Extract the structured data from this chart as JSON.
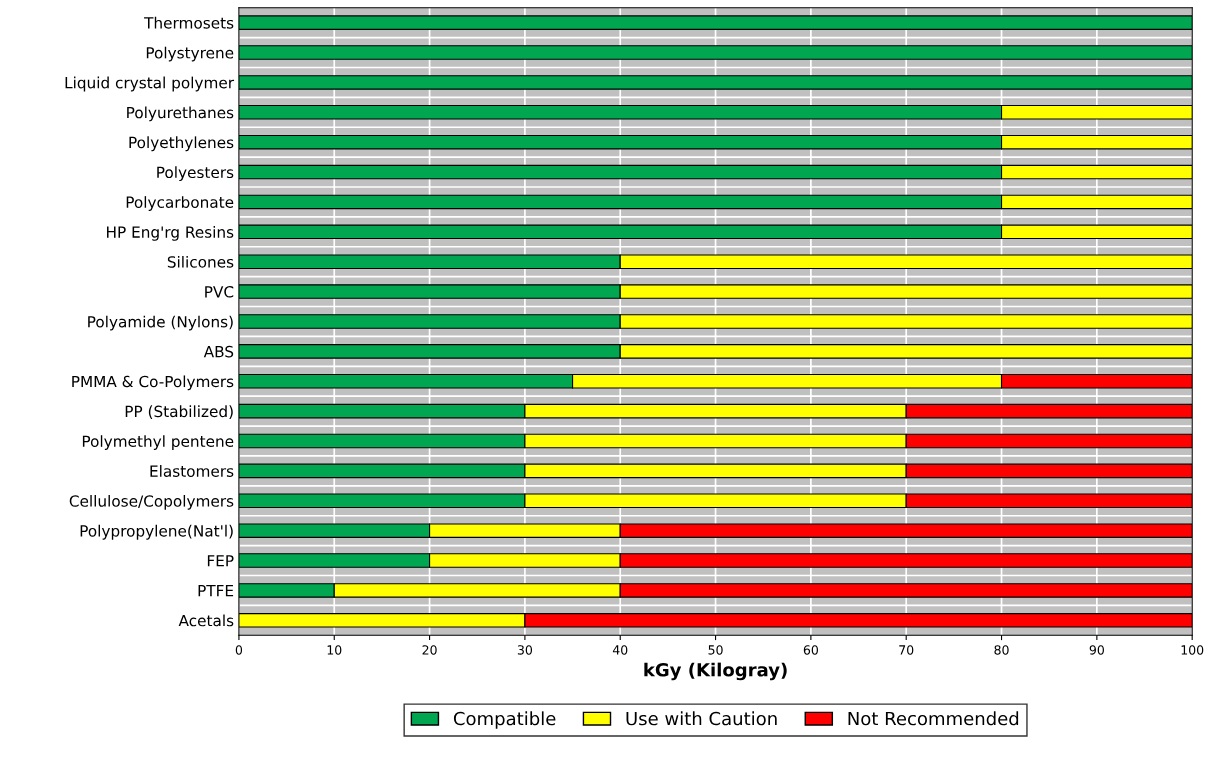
{
  "chart_data": {
    "type": "bar",
    "orientation": "horizontal",
    "stacked": true,
    "categories": [
      "Thermosets",
      "Polystyrene",
      "Liquid crystal polymer",
      "Polyurethanes",
      "Polyethylenes",
      "Polyesters",
      "Polycarbonate",
      "HP Eng'rg Resins",
      "Silicones",
      "PVC",
      "Polyamide (Nylons)",
      "ABS",
      "PMMA & Co-Polymers",
      "PP (Stabilized)",
      "Polymethyl pentene",
      "Elastomers",
      "Cellulose/Copolymers",
      "Polypropylene(Nat'l)",
      "FEP",
      "PTFE",
      "Acetals"
    ],
    "series": [
      {
        "name": "Compatible",
        "color": "#00a650",
        "values": [
          100,
          100,
          100,
          80,
          80,
          80,
          80,
          80,
          40,
          40,
          40,
          40,
          35,
          30,
          30,
          30,
          30,
          20,
          20,
          10,
          null
        ]
      },
      {
        "name": "Use with Caution",
        "color": "#ffff00",
        "values": [
          null,
          null,
          null,
          20,
          20,
          20,
          20,
          20,
          60,
          60,
          60,
          60,
          45,
          40,
          40,
          40,
          40,
          20,
          20,
          30,
          30
        ]
      },
      {
        "name": "Not Recommended",
        "color": "#ff0000",
        "values": [
          null,
          null,
          null,
          null,
          null,
          null,
          null,
          null,
          null,
          null,
          null,
          null,
          20,
          30,
          30,
          30,
          30,
          60,
          60,
          60,
          70
        ]
      }
    ],
    "xlabel": "kGy (Kilogray)",
    "xlim": [
      0,
      100
    ],
    "xticks": [
      0,
      10,
      20,
      30,
      40,
      50,
      60,
      70,
      80,
      90,
      100
    ],
    "grid": true,
    "legend": "bottom"
  }
}
